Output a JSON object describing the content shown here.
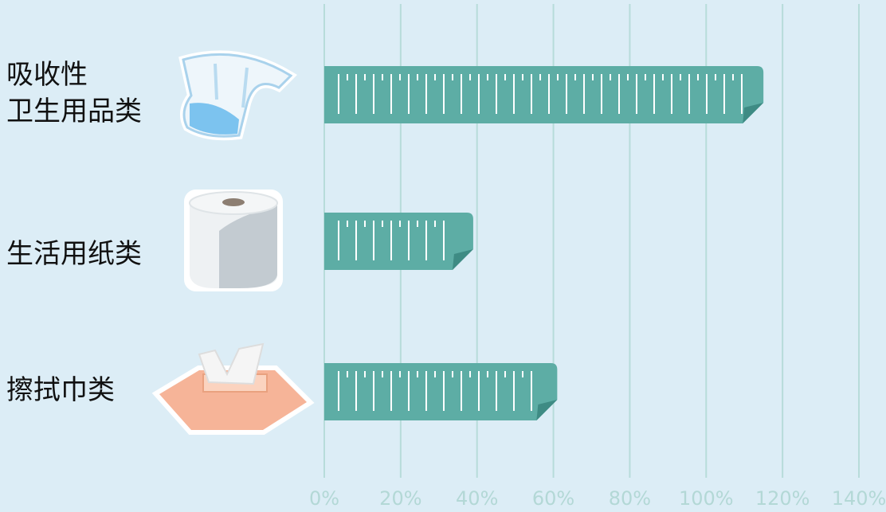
{
  "chart_data": {
    "type": "bar",
    "orientation": "horizontal",
    "categories": [
      "吸收性\n卫生用品类",
      "生活用纸类",
      "擦拭巾类"
    ],
    "values": [
      115,
      39,
      61
    ],
    "color": "#5dada5",
    "xlim": [
      0,
      140
    ],
    "xticks": [
      {
        "value": 0,
        "label": "0%"
      },
      {
        "value": 20,
        "label": "20%"
      },
      {
        "value": 40,
        "label": "40%"
      },
      {
        "value": 60,
        "label": "60%"
      },
      {
        "value": 80,
        "label": "80%"
      },
      {
        "value": 100,
        "label": "100%"
      },
      {
        "value": 120,
        "label": "120%"
      },
      {
        "value": 140,
        "label": "140%"
      }
    ],
    "grid": true
  }
}
